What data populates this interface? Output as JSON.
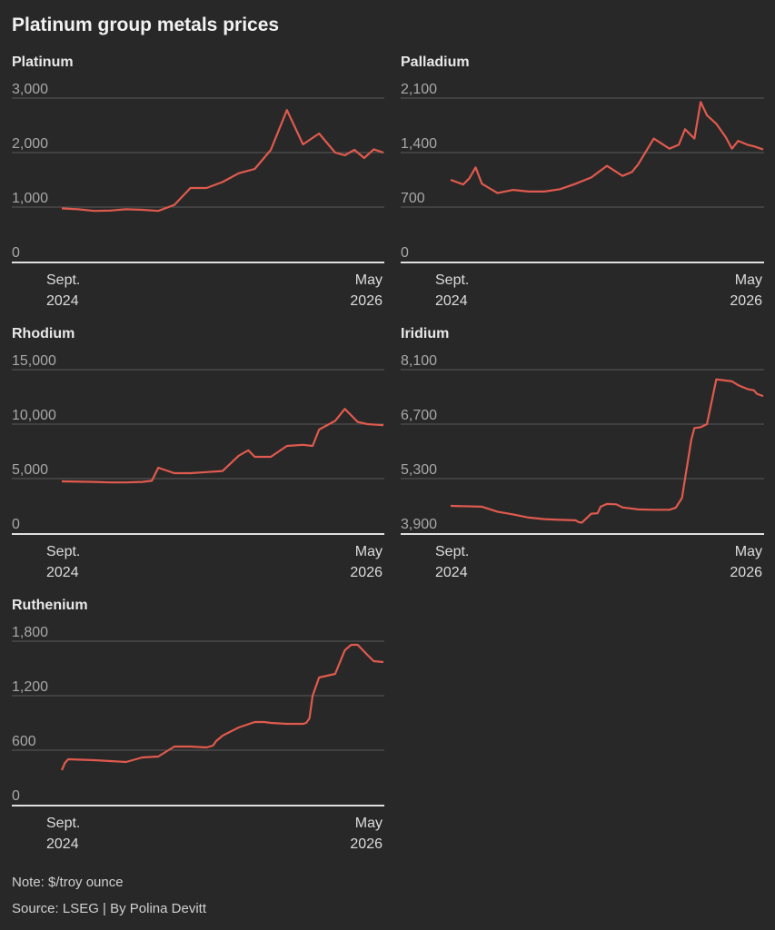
{
  "title": "Platinum group metals prices",
  "note": "Note: $/troy ounce",
  "source": "Source: LSEG | By Polina Devitt",
  "colors": {
    "line": "#e05a4e",
    "grid": "#5a5a5a",
    "axis": "#e0e0e0"
  },
  "x_labels": {
    "start_month": "Sept.",
    "start_year": "2024",
    "end_month": "May",
    "end_year": "2026"
  },
  "chart_data": [
    {
      "type": "line",
      "title": "Platinum",
      "ylim": [
        0,
        3000
      ],
      "yticks": [
        "0",
        "1,000",
        "2,000",
        "3,000"
      ],
      "x": [
        0,
        5,
        10,
        15,
        20,
        25,
        30,
        35,
        40,
        45,
        50,
        55,
        60,
        65,
        70,
        75,
        80,
        85,
        88,
        91,
        94,
        97,
        100
      ],
      "y": [
        975,
        960,
        930,
        935,
        960,
        950,
        930,
        1040,
        1350,
        1350,
        1460,
        1620,
        1700,
        2050,
        2780,
        2150,
        2350,
        2000,
        1950,
        2050,
        1900,
        2060,
        2000
      ]
    },
    {
      "type": "line",
      "title": "Palladium",
      "ylim": [
        0,
        2100
      ],
      "yticks": [
        "0",
        "700",
        "1,400",
        "2,100"
      ],
      "x": [
        0,
        4,
        6,
        8,
        10,
        15,
        20,
        25,
        30,
        35,
        40,
        45,
        50,
        55,
        58,
        60,
        65,
        70,
        73,
        75,
        78,
        80,
        82,
        85,
        88,
        90,
        92,
        95,
        97,
        100
      ],
      "y": [
        1050,
        990,
        1070,
        1210,
        1000,
        880,
        920,
        900,
        900,
        930,
        1000,
        1080,
        1230,
        1100,
        1150,
        1250,
        1580,
        1450,
        1500,
        1700,
        1580,
        2050,
        1880,
        1770,
        1600,
        1450,
        1550,
        1500,
        1480,
        1440
      ]
    },
    {
      "type": "line",
      "title": "Rhodium",
      "ylim": [
        0,
        15000
      ],
      "yticks": [
        "0",
        "5,000",
        "10,000",
        "15,000"
      ],
      "x": [
        0,
        10,
        15,
        20,
        25,
        28,
        30,
        35,
        40,
        45,
        50,
        55,
        58,
        60,
        65,
        70,
        75,
        78,
        80,
        85,
        88,
        90,
        92,
        95,
        100
      ],
      "y": [
        4750,
        4700,
        4650,
        4650,
        4700,
        4800,
        6000,
        5500,
        5500,
        5600,
        5700,
        7100,
        7600,
        7000,
        7000,
        8000,
        8100,
        8000,
        9500,
        10300,
        11400,
        10800,
        10200,
        10000,
        9900
      ]
    },
    {
      "type": "line",
      "title": "Iridium",
      "ylim": [
        3900,
        8100
      ],
      "yticks": [
        "3,900",
        "5,300",
        "6,700",
        "8,100"
      ],
      "x": [
        0,
        10,
        15,
        20,
        25,
        30,
        35,
        40,
        41,
        42,
        45,
        47,
        48,
        50,
        53,
        55,
        60,
        65,
        70,
        72,
        74,
        75,
        77,
        78,
        80,
        82,
        85,
        88,
        90,
        92,
        95,
        97,
        98,
        100
      ],
      "y": [
        4600,
        4580,
        4450,
        4380,
        4300,
        4260,
        4240,
        4230,
        4180,
        4170,
        4400,
        4410,
        4580,
        4650,
        4640,
        4560,
        4510,
        4500,
        4500,
        4550,
        4800,
        5300,
        6300,
        6600,
        6620,
        6700,
        7850,
        7820,
        7800,
        7700,
        7600,
        7570,
        7480,
        7420
      ]
    },
    {
      "type": "line",
      "title": "Ruthenium",
      "ylim": [
        0,
        1800
      ],
      "yticks": [
        "0",
        "600",
        "1,200",
        "1,800"
      ],
      "x": [
        0,
        1,
        2,
        10,
        20,
        25,
        30,
        35,
        40,
        45,
        47,
        48,
        50,
        55,
        60,
        63,
        65,
        70,
        75,
        76,
        77,
        78,
        80,
        85,
        88,
        90,
        92,
        95,
        97,
        100
      ],
      "y": [
        380,
        460,
        500,
        490,
        470,
        520,
        530,
        640,
        640,
        630,
        650,
        700,
        760,
        850,
        910,
        910,
        900,
        890,
        890,
        900,
        950,
        1200,
        1400,
        1440,
        1700,
        1760,
        1760,
        1650,
        1580,
        1570
      ]
    }
  ]
}
